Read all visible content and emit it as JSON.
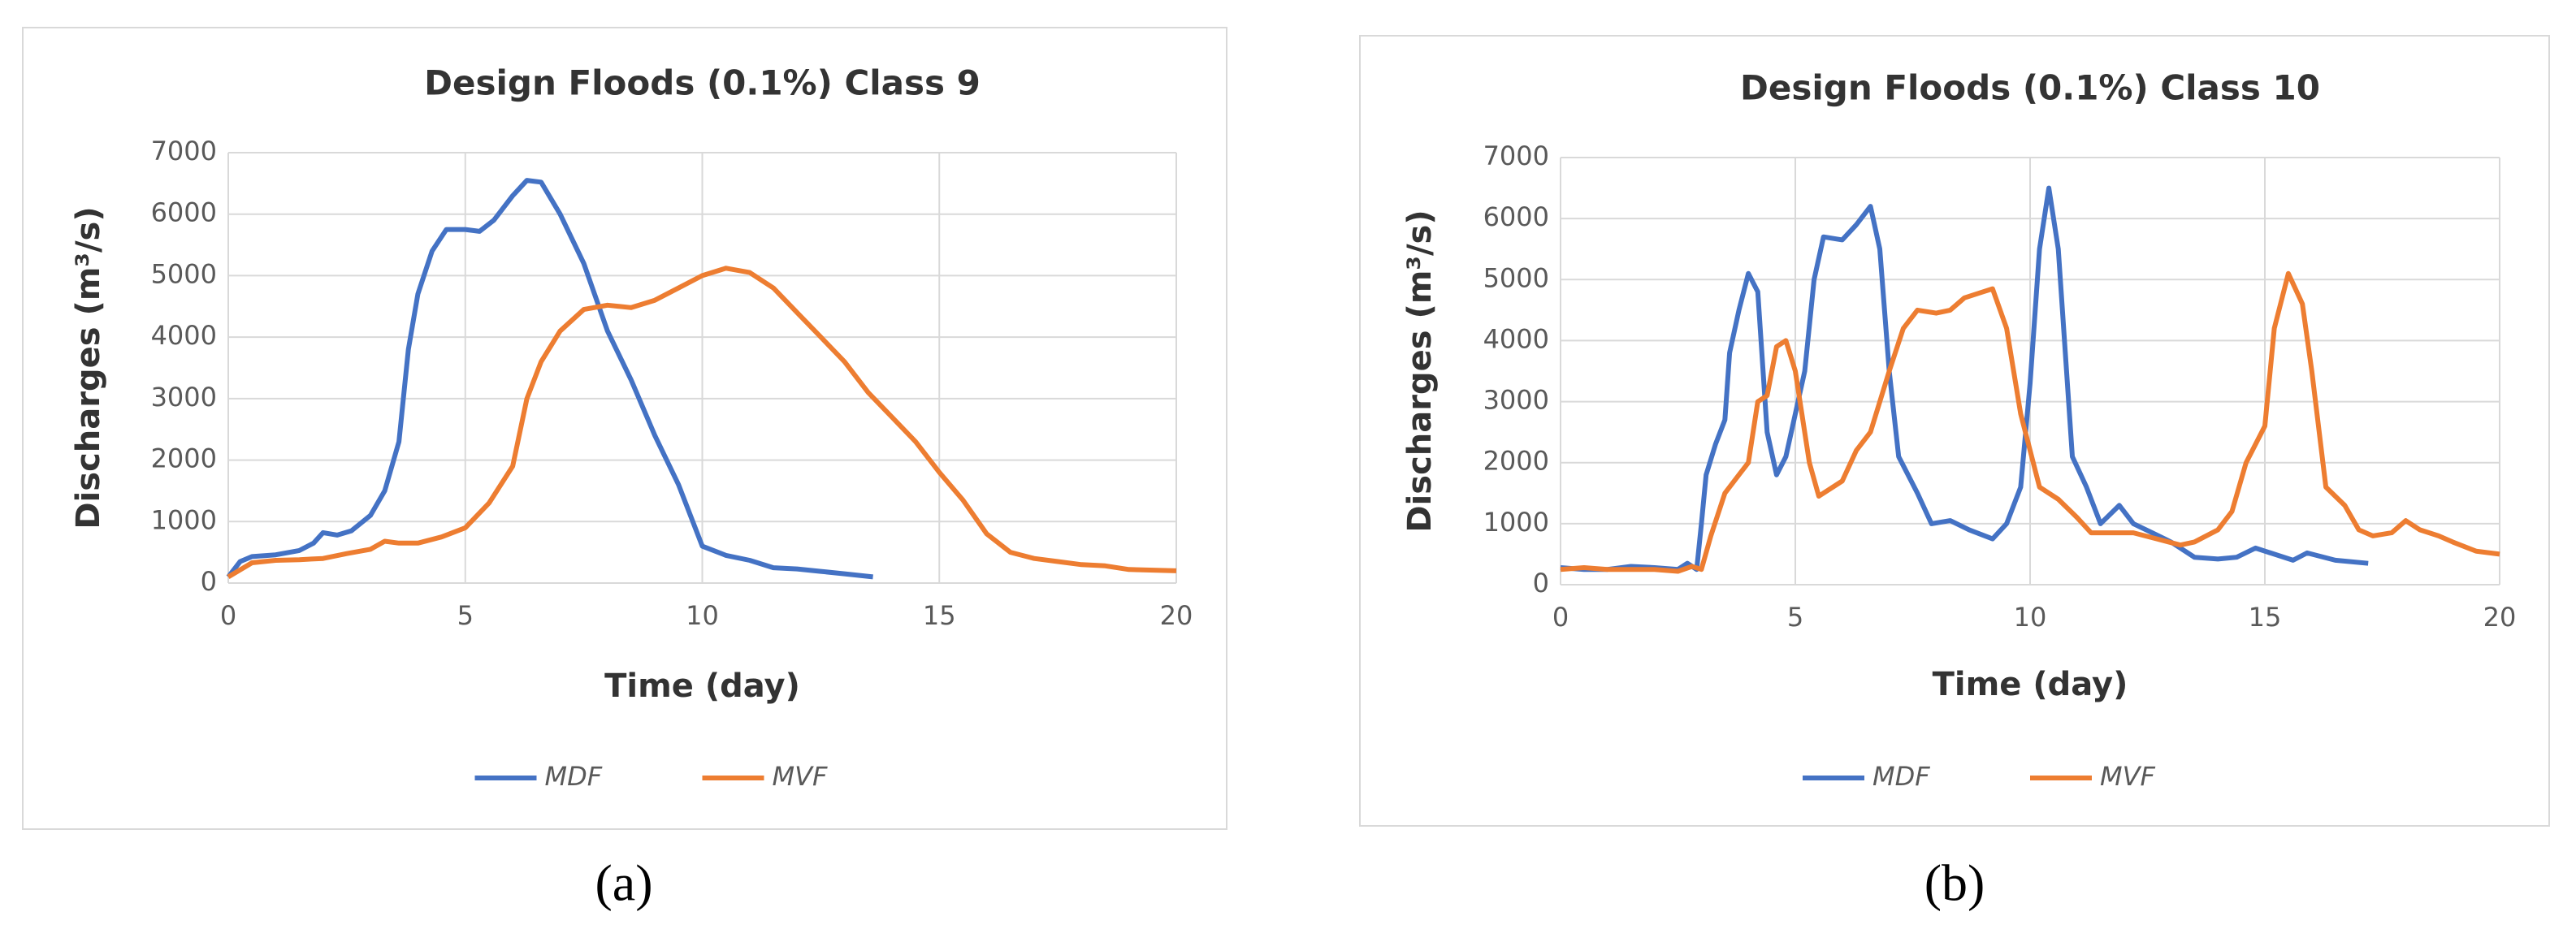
{
  "chart_data": [
    {
      "type": "line",
      "title": "Design Floods (0.1%)  Class 9",
      "caption": "(a)",
      "x_label": "Time (day)",
      "y_label": "Discharges (m³/s)",
      "xlim": [
        0,
        20
      ],
      "xticks": [
        0,
        5,
        10,
        15,
        20
      ],
      "ylim": [
        0,
        7000
      ],
      "yticks": [
        0,
        1000,
        2000,
        3000,
        4000,
        5000,
        6000,
        7000
      ],
      "grid": true,
      "legend": "bottom",
      "series": [
        {
          "name": "MDF",
          "color": "#4472c4",
          "x": [
            0,
            0.25,
            0.5,
            1,
            1.5,
            1.8,
            2,
            2.3,
            2.6,
            3,
            3.3,
            3.6,
            3.8,
            4,
            4.3,
            4.6,
            5,
            5.3,
            5.6,
            6,
            6.3,
            6.6,
            7,
            7.5,
            8,
            8.5,
            9,
            9.5,
            10,
            10.5,
            11,
            11.5,
            12,
            12.5,
            13,
            13.6
          ],
          "values": [
            100,
            350,
            430,
            460,
            530,
            650,
            820,
            780,
            850,
            1100,
            1500,
            2300,
            3800,
            4700,
            5400,
            5750,
            5750,
            5720,
            5900,
            6300,
            6550,
            6520,
            6000,
            5200,
            4100,
            3300,
            2400,
            1600,
            600,
            450,
            370,
            250,
            230,
            190,
            150,
            100
          ]
        },
        {
          "name": "MVF",
          "color": "#ed7d31",
          "x": [
            0,
            0.5,
            1,
            1.5,
            2,
            2.5,
            3,
            3.3,
            3.6,
            4,
            4.5,
            5,
            5.5,
            6,
            6.3,
            6.6,
            7,
            7.5,
            8,
            8.5,
            9,
            9.5,
            10,
            10.5,
            11,
            11.5,
            12,
            12.5,
            13,
            13.5,
            14,
            14.5,
            15,
            15.5,
            16,
            16.5,
            17,
            17.5,
            18,
            18.5,
            19,
            20
          ],
          "values": [
            100,
            330,
            370,
            380,
            400,
            480,
            550,
            680,
            650,
            650,
            750,
            900,
            1300,
            1900,
            3000,
            3600,
            4100,
            4450,
            4520,
            4480,
            4600,
            4800,
            5000,
            5120,
            5050,
            4800,
            4400,
            4000,
            3600,
            3100,
            2700,
            2300,
            1800,
            1350,
            800,
            500,
            400,
            350,
            300,
            280,
            220,
            200
          ]
        }
      ]
    },
    {
      "type": "line",
      "title": "Design Floods (0.1%)  Class 10",
      "caption": "(b)",
      "x_label": "Time (day)",
      "y_label": "Discharges (m³/s)",
      "xlim": [
        0,
        20
      ],
      "xticks": [
        0,
        5,
        10,
        15,
        20
      ],
      "ylim": [
        0,
        7000
      ],
      "yticks": [
        0,
        1000,
        2000,
        3000,
        4000,
        5000,
        6000,
        7000
      ],
      "grid": true,
      "legend": "bottom",
      "series": [
        {
          "name": "MDF",
          "color": "#4472c4",
          "x": [
            0,
            0.5,
            1,
            1.5,
            2,
            2.5,
            2.7,
            2.9,
            3,
            3.1,
            3.3,
            3.5,
            3.6,
            3.8,
            4,
            4.2,
            4.4,
            4.6,
            4.8,
            5,
            5.2,
            5.4,
            5.6,
            6,
            6.3,
            6.6,
            6.8,
            7,
            7.2,
            7.6,
            7.9,
            8.3,
            8.7,
            9.2,
            9.5,
            9.8,
            10,
            10.2,
            10.4,
            10.6,
            10.9,
            11.2,
            11.5,
            11.9,
            12.2,
            12.6,
            13,
            13.5,
            14,
            14.4,
            14.8,
            15.2,
            15.6,
            15.9,
            16.5,
            17.2
          ],
          "values": [
            280,
            250,
            250,
            300,
            280,
            250,
            350,
            250,
            1000,
            1800,
            2300,
            2700,
            3800,
            4500,
            5100,
            4800,
            2500,
            1800,
            2100,
            2800,
            3500,
            5000,
            5700,
            5650,
            5900,
            6200,
            5500,
            3500,
            2100,
            1500,
            1000,
            1050,
            900,
            750,
            1000,
            1600,
            3300,
            5500,
            6500,
            5500,
            2100,
            1600,
            1000,
            1300,
            1000,
            850,
            700,
            450,
            420,
            450,
            600,
            500,
            400,
            520,
            400,
            350
          ]
        },
        {
          "name": "MVF",
          "color": "#ed7d31",
          "x": [
            0,
            0.5,
            1,
            1.5,
            2,
            2.5,
            2.8,
            3,
            3.2,
            3.5,
            3.8,
            4,
            4.2,
            4.4,
            4.6,
            4.8,
            5,
            5.3,
            5.5,
            5.8,
            6,
            6.3,
            6.6,
            7,
            7.3,
            7.6,
            8,
            8.3,
            8.6,
            9,
            9.2,
            9.5,
            9.8,
            10.2,
            10.6,
            11,
            11.3,
            11.7,
            12.2,
            12.7,
            13.2,
            13.5,
            14,
            14.3,
            14.6,
            15,
            15.2,
            15.5,
            15.8,
            16,
            16.3,
            16.7,
            17,
            17.3,
            17.7,
            18,
            18.3,
            18.7,
            19,
            19.5,
            20
          ],
          "values": [
            250,
            280,
            250,
            250,
            250,
            220,
            300,
            250,
            800,
            1500,
            1800,
            2000,
            3000,
            3100,
            3900,
            4000,
            3500,
            2000,
            1450,
            1600,
            1700,
            2200,
            2500,
            3500,
            4200,
            4500,
            4450,
            4500,
            4700,
            4800,
            4850,
            4200,
            2800,
            1600,
            1400,
            1100,
            850,
            850,
            850,
            750,
            650,
            700,
            900,
            1200,
            2000,
            2600,
            4200,
            5100,
            4600,
            3500,
            1600,
            1300,
            900,
            800,
            850,
            1050,
            900,
            800,
            700,
            550,
            500
          ]
        }
      ]
    }
  ]
}
